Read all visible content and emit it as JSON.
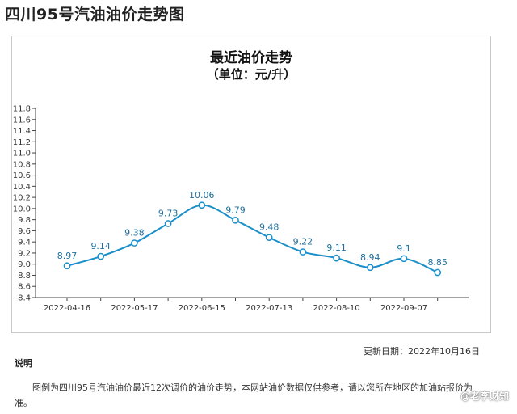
{
  "page": {
    "title": "四川95号汽油油价走势图"
  },
  "chart_data": {
    "type": "line",
    "title": "最近油价走势",
    "subtitle": "（单位：元/升）",
    "points": [
      {
        "label": "9.0",
        "value": 8.97
      },
      {
        "label": "",
        "value": 9.14
      },
      {
        "label": "",
        "value": 9.38
      },
      {
        "label": "",
        "value": 9.73
      },
      {
        "label": "",
        "value": 10.06
      },
      {
        "label": "",
        "value": 9.79
      },
      {
        "label": "",
        "value": 9.48
      },
      {
        "label": "",
        "value": 9.22
      },
      {
        "label": "",
        "value": 9.11
      },
      {
        "label": "",
        "value": 8.94
      },
      {
        "label": "",
        "value": 9.1
      },
      {
        "label": "",
        "value": 8.85
      }
    ],
    "x_tick_labels": [
      "2022-04-16",
      "2022-05-17",
      "2022-06-15",
      "2022-07-13",
      "2022-08-10",
      "2022-09-07"
    ],
    "data_labels": [
      "8.97",
      "9.14",
      "9.38",
      "9.73",
      "10.06",
      "9.79",
      "9.48",
      "9.22",
      "9.11",
      "8.94",
      "9.1",
      "8.85"
    ],
    "ylim": [
      8.4,
      11.8
    ],
    "yticks": [
      "8.4",
      "8.6",
      "8.8",
      "9.0",
      "9.2",
      "9.4",
      "9.6",
      "9.8",
      "10.0",
      "10.2",
      "10.4",
      "10.6",
      "10.8",
      "11.0",
      "11.2",
      "11.4",
      "11.6",
      "11.8"
    ],
    "grid": false,
    "legend": "none",
    "colors": {
      "line": "#1a8fc9",
      "marker_fill": "#ffffff",
      "label": "#1f6f9e",
      "axis": "#444444"
    }
  },
  "footer": {
    "update_date": "更新日期：2022年10月16日",
    "note_title": "说明",
    "note_text": "图例为四川95号汽油油价最近12次调价的油价走势，本网站油价数据仅供参考，请以您所在地区的加油站报价为准。",
    "watermark": "@老李财知"
  }
}
